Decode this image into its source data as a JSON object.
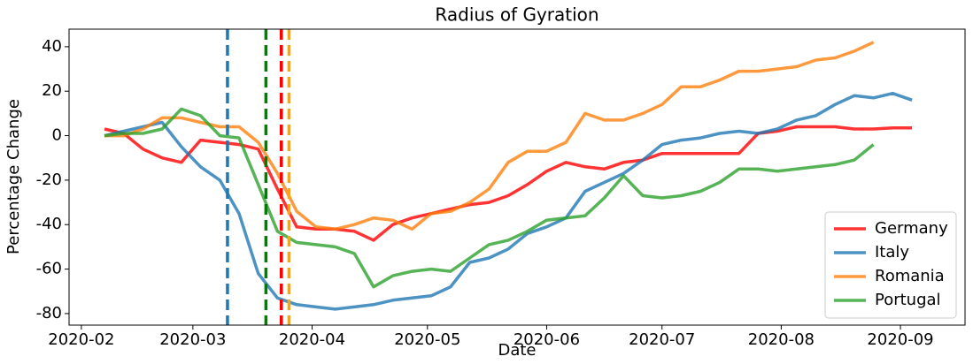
{
  "chart_data": {
    "type": "line",
    "title": "Radius of Gyration",
    "xlabel": "Date",
    "ylabel": "Percentage Change",
    "x": [
      38,
      43,
      48,
      53,
      58,
      63,
      68,
      73,
      78,
      83,
      88,
      93,
      98,
      103,
      108,
      113,
      118,
      123,
      128,
      133,
      138,
      143,
      148,
      153,
      158,
      163,
      168,
      173,
      178,
      183,
      188,
      193,
      198,
      203,
      208,
      213,
      218,
      223,
      228,
      233,
      238,
      243,
      248
    ],
    "series": [
      {
        "name": "Germany",
        "color": "#ff0000",
        "values": [
          3,
          1,
          -6,
          -10,
          -12,
          -2,
          -3,
          -4,
          -6,
          -24,
          -41,
          -42,
          -42,
          -43,
          -47,
          -40,
          -37,
          -35,
          -33,
          -31,
          -30,
          -27,
          -22,
          -16,
          -12,
          -14,
          -15,
          -12,
          -11,
          -8,
          -8,
          -8,
          -8,
          -8,
          1,
          2,
          4,
          4,
          4,
          3,
          3,
          3.5,
          3.5
        ]
      },
      {
        "name": "Italy",
        "color": "#1f77b4",
        "values": [
          0,
          2,
          4,
          6,
          -5,
          -14,
          -20,
          -35,
          -62,
          -73,
          -76,
          -77,
          -78,
          -77,
          -76,
          -74,
          -73,
          -72,
          -68,
          -57,
          -55,
          -51,
          -44,
          -41,
          -37,
          -25,
          -21,
          -17,
          -11,
          -4,
          -2,
          -1,
          1,
          2,
          1,
          3,
          7,
          9,
          14,
          18,
          17,
          19,
          16
        ]
      },
      {
        "name": "Romania",
        "color": "#ff7f0e",
        "values": [
          0,
          0,
          3,
          8,
          8,
          6,
          4,
          4,
          -3,
          -17,
          -34,
          -41,
          -42,
          -40,
          -37,
          -38,
          -42,
          -35,
          -34,
          -30,
          -24,
          -12,
          -7,
          -7,
          -3,
          10,
          7,
          7,
          10,
          14,
          22,
          22,
          25,
          29,
          29,
          30,
          31,
          34,
          35,
          38,
          42,
          null,
          null
        ]
      },
      {
        "name": "Portugal",
        "color": "#2ca02c",
        "values": [
          0,
          1,
          1,
          3,
          12,
          9,
          0,
          -1,
          -22,
          -43,
          -48,
          -49,
          -50,
          -53,
          -68,
          -63,
          -61,
          -60,
          -61,
          -55,
          -49,
          -47,
          -43,
          -38,
          -37,
          -36,
          -28,
          -18,
          -27,
          -28,
          -27,
          -25,
          -21,
          -15,
          -15,
          -16,
          -15,
          -14,
          -13,
          -11,
          -4,
          null,
          null
        ]
      }
    ],
    "vlines": [
      {
        "x": 70,
        "color": "#1f77b4"
      },
      {
        "x": 80,
        "color": "#008000"
      },
      {
        "x": 84,
        "color": "#ff0000"
      },
      {
        "x": 86,
        "color": "#ffa500"
      }
    ],
    "xlim": [
      28.8,
      261.8
    ],
    "xticks": [
      {
        "value": 32,
        "label": "2020-02"
      },
      {
        "value": 61,
        "label": "2020-03"
      },
      {
        "value": 92,
        "label": "2020-04"
      },
      {
        "value": 122,
        "label": "2020-05"
      },
      {
        "value": 153,
        "label": "2020-06"
      },
      {
        "value": 183,
        "label": "2020-07"
      },
      {
        "value": 214,
        "label": "2020-08"
      },
      {
        "value": 245,
        "label": "2020-09"
      }
    ],
    "ylim": [
      -85.2,
      47.9
    ],
    "yticks": [
      -80,
      -60,
      -40,
      -20,
      0,
      20,
      40
    ],
    "legend": "lower right"
  }
}
